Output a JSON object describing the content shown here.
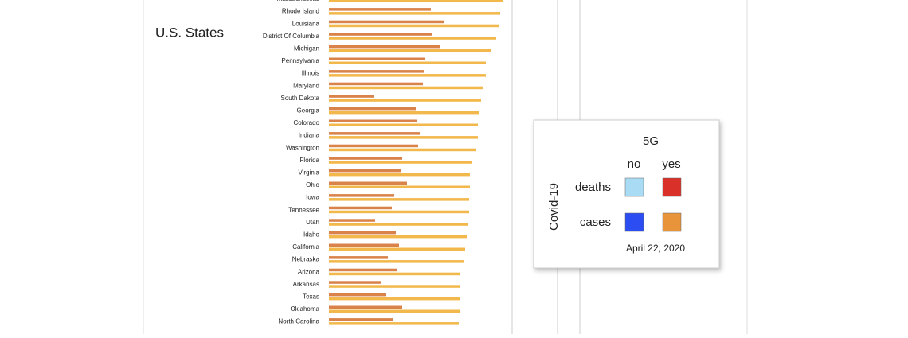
{
  "chart_data": {
    "type": "hbar",
    "title": "U.S. States",
    "categories": [
      "Massachusetts",
      "Rhode Island",
      "Louisiana",
      "District Of Columbia",
      "Michigan",
      "Pennsylvania",
      "Illinois",
      "Maryland",
      "South Dakota",
      "Georgia",
      "Colorado",
      "Indiana",
      "Washington",
      "Florida",
      "Virginia",
      "Ohio",
      "Iowa",
      "Tennessee",
      "Utah",
      "Idaho",
      "California",
      "Nebraska",
      "Arizona",
      "Arkansas",
      "Texas",
      "Oklahoma",
      "North Carolina"
    ],
    "series": [
      {
        "name": "deaths",
        "color": "#d9824a",
        "values": [
          null,
          128,
          144,
          130,
          140,
          120,
          119,
          118,
          56,
          109,
          111,
          114,
          112,
          92,
          91,
          98,
          82,
          79,
          58,
          84,
          88,
          74,
          85,
          65,
          72,
          92,
          80
        ]
      },
      {
        "name": "cases",
        "color": "#f2b84b",
        "values": [
          219,
          215,
          214,
          210,
          203,
          197,
          197,
          194,
          191,
          189,
          187,
          187,
          185,
          180,
          177,
          177,
          176,
          176,
          175,
          173,
          171,
          170,
          165,
          165,
          164,
          164,
          163
        ]
      }
    ],
    "legend": {
      "title": "5G",
      "columns": [
        "no",
        "yes"
      ],
      "axis_label": "Covid-19",
      "swatch_colors": [
        [
          "#a9dcf4",
          "#d9302a"
        ],
        [
          "#2b4df2",
          "#e8943a"
        ]
      ],
      "note": "April 22, 2020"
    }
  }
}
